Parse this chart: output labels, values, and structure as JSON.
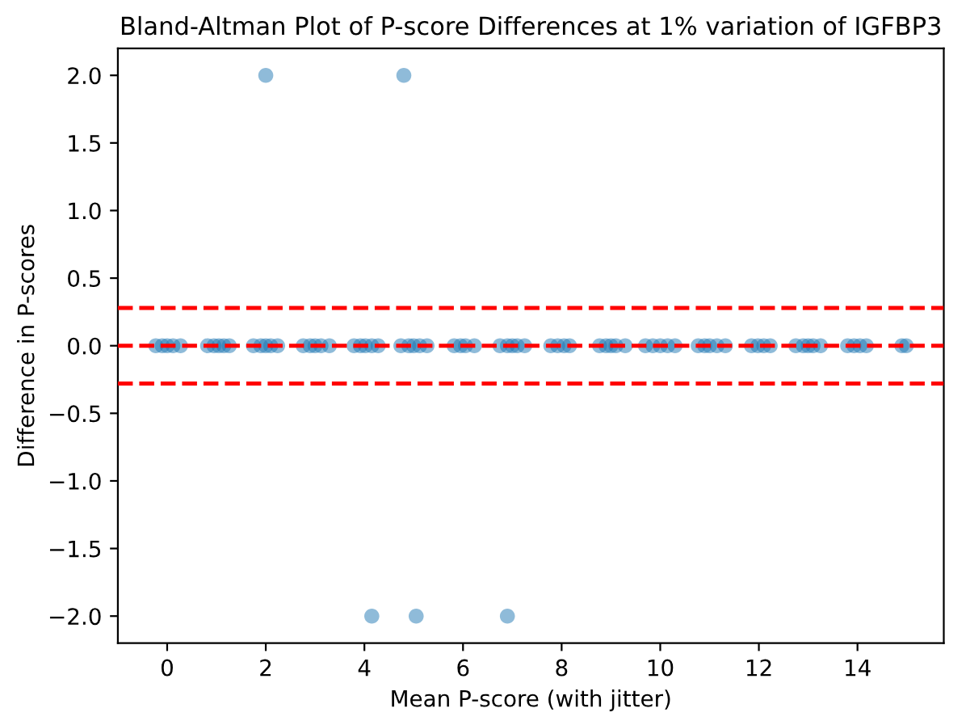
{
  "chart_data": {
    "type": "scatter",
    "title": "Bland-Altman Plot of P-score Differences at 1% variation of IGFBP3",
    "xlabel": "Mean P-score (with jitter)",
    "ylabel": "Difference in P-scores",
    "xlim": [
      -1.0,
      15.75
    ],
    "ylim": [
      -2.2,
      2.2
    ],
    "xticks": [
      0,
      2,
      4,
      6,
      8,
      10,
      12,
      14
    ],
    "yticks": [
      {
        "value": -2.0,
        "label": "−2.0"
      },
      {
        "value": -1.5,
        "label": "−1.5"
      },
      {
        "value": -1.0,
        "label": "−1.0"
      },
      {
        "value": -0.5,
        "label": "−0.5"
      },
      {
        "value": 0.0,
        "label": "0.0"
      },
      {
        "value": 0.5,
        "label": "0.5"
      },
      {
        "value": 1.0,
        "label": "1.0"
      },
      {
        "value": 1.5,
        "label": "1.5"
      },
      {
        "value": 2.0,
        "label": "2.0"
      }
    ],
    "marker": "circle",
    "grid": false,
    "series": [
      {
        "color": "#1f77b4",
        "x": [
          -0.23,
          -0.1,
          0,
          0.12,
          0.27,
          0.82,
          0.95,
          1.05,
          1.15,
          1.26,
          1.75,
          1.9,
          2.0,
          2.1,
          2.24,
          2.76,
          2.9,
          3.0,
          3.12,
          3.29,
          3.79,
          3.92,
          4.02,
          4.15,
          4.28,
          4.74,
          4.9,
          5.0,
          5.12,
          5.27,
          5.82,
          5.95,
          6.05,
          6.23,
          6.75,
          6.9,
          7.0,
          7.1,
          7.25,
          7.78,
          7.92,
          8.05,
          8.16,
          8.77,
          8.9,
          9.0,
          9.1,
          9.29,
          9.7,
          9.85,
          10.0,
          10.15,
          10.3,
          10.77,
          10.9,
          11.0,
          11.15,
          11.32,
          11.85,
          11.98,
          12.1,
          12.23,
          12.75,
          12.9,
          13.0,
          13.1,
          13.25,
          13.8,
          13.93,
          14.05,
          14.18,
          14.9,
          14.99,
          2.0,
          4.8,
          4.15,
          5.05,
          6.9
        ],
        "values": [
          0,
          0,
          0,
          0,
          0,
          0,
          0,
          0,
          0,
          0,
          0,
          0,
          0,
          0,
          0,
          0,
          0,
          0,
          0,
          0,
          0,
          0,
          0,
          0,
          0,
          0,
          0,
          0,
          0,
          0,
          0,
          0,
          0,
          0,
          0,
          0,
          0,
          0,
          0,
          0,
          0,
          0,
          0,
          0,
          0,
          0,
          0,
          0,
          0,
          0,
          0,
          0,
          0,
          0,
          0,
          0,
          0,
          0,
          0,
          0,
          0,
          0,
          0,
          0,
          0,
          0,
          0,
          0,
          0,
          0,
          0,
          0,
          0,
          2,
          2,
          -2,
          -2,
          -2
        ]
      }
    ],
    "ref_lines": [
      {
        "axis": "y",
        "value": 0.28,
        "color": "#ff0000",
        "line_style": "dashed"
      },
      {
        "axis": "y",
        "value": 0,
        "color": "#ff0000",
        "line_style": "dashed"
      },
      {
        "axis": "y",
        "value": -0.28,
        "color": "#ff0000",
        "line_style": "dashed"
      }
    ]
  }
}
